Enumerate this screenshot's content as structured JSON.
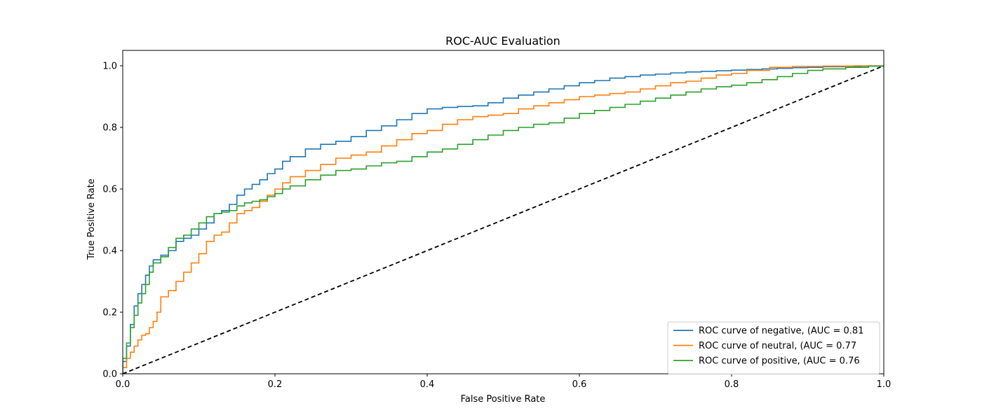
{
  "chart_data": {
    "type": "line",
    "title": "ROC-AUC Evaluation",
    "xlabel": "False Positive Rate",
    "ylabel": "True Positive Rate",
    "xlim": [
      0.0,
      1.0
    ],
    "ylim": [
      0.0,
      1.05
    ],
    "xticks": [
      "0.0",
      "0.2",
      "0.4",
      "0.6",
      "0.8",
      "1.0"
    ],
    "yticks": [
      "0.0",
      "0.2",
      "0.4",
      "0.6",
      "0.8",
      "1.0"
    ],
    "grid": false,
    "legend_position": "lower-right",
    "series": [
      {
        "name": "ROC curve of negative, (AUC = 0.81",
        "color": "#1f77b4",
        "x": [
          0.0,
          0.0,
          0.005,
          0.01,
          0.015,
          0.02,
          0.025,
          0.03,
          0.035,
          0.04,
          0.05,
          0.06,
          0.07,
          0.08,
          0.09,
          0.1,
          0.11,
          0.12,
          0.13,
          0.14,
          0.15,
          0.16,
          0.17,
          0.18,
          0.19,
          0.2,
          0.21,
          0.22,
          0.24,
          0.26,
          0.28,
          0.3,
          0.32,
          0.34,
          0.36,
          0.38,
          0.4,
          0.42,
          0.44,
          0.46,
          0.48,
          0.5,
          0.52,
          0.54,
          0.56,
          0.58,
          0.6,
          0.62,
          0.64,
          0.66,
          0.68,
          0.7,
          0.72,
          0.74,
          0.76,
          0.78,
          0.8,
          0.82,
          0.84,
          0.86,
          0.88,
          0.9,
          0.92,
          0.95,
          0.97,
          1.0
        ],
        "y": [
          0.0,
          0.04,
          0.09,
          0.16,
          0.22,
          0.26,
          0.29,
          0.32,
          0.35,
          0.37,
          0.385,
          0.4,
          0.43,
          0.44,
          0.45,
          0.47,
          0.49,
          0.52,
          0.53,
          0.55,
          0.58,
          0.6,
          0.615,
          0.63,
          0.65,
          0.665,
          0.69,
          0.705,
          0.73,
          0.745,
          0.755,
          0.77,
          0.79,
          0.805,
          0.825,
          0.845,
          0.86,
          0.865,
          0.868,
          0.87,
          0.88,
          0.895,
          0.905,
          0.915,
          0.925,
          0.935,
          0.945,
          0.952,
          0.96,
          0.965,
          0.97,
          0.973,
          0.977,
          0.98,
          0.982,
          0.984,
          0.986,
          0.988,
          0.99,
          0.992,
          0.994,
          0.995,
          0.997,
          0.998,
          0.999,
          1.0
        ]
      },
      {
        "name": "ROC curve of neutral, (AUC = 0.77",
        "color": "#ff7f0e",
        "x": [
          0.0,
          0.0,
          0.005,
          0.01,
          0.015,
          0.02,
          0.025,
          0.03,
          0.035,
          0.04,
          0.045,
          0.05,
          0.06,
          0.07,
          0.08,
          0.09,
          0.1,
          0.11,
          0.12,
          0.13,
          0.14,
          0.15,
          0.16,
          0.17,
          0.18,
          0.19,
          0.2,
          0.21,
          0.22,
          0.24,
          0.26,
          0.28,
          0.3,
          0.32,
          0.34,
          0.36,
          0.38,
          0.4,
          0.42,
          0.44,
          0.46,
          0.48,
          0.5,
          0.52,
          0.54,
          0.56,
          0.58,
          0.6,
          0.62,
          0.64,
          0.66,
          0.68,
          0.7,
          0.72,
          0.74,
          0.76,
          0.78,
          0.8,
          0.82,
          0.85,
          0.88,
          0.92,
          0.96,
          1.0
        ],
        "y": [
          0.0,
          0.02,
          0.05,
          0.07,
          0.09,
          0.11,
          0.125,
          0.13,
          0.15,
          0.17,
          0.2,
          0.25,
          0.27,
          0.3,
          0.33,
          0.36,
          0.39,
          0.43,
          0.45,
          0.46,
          0.49,
          0.52,
          0.53,
          0.54,
          0.56,
          0.58,
          0.6,
          0.62,
          0.64,
          0.66,
          0.68,
          0.7,
          0.71,
          0.72,
          0.74,
          0.76,
          0.78,
          0.79,
          0.81,
          0.825,
          0.835,
          0.84,
          0.845,
          0.86,
          0.87,
          0.88,
          0.89,
          0.9,
          0.905,
          0.91,
          0.915,
          0.925,
          0.935,
          0.945,
          0.95,
          0.96,
          0.97,
          0.975,
          0.985,
          0.995,
          0.998,
          0.999,
          1.0,
          1.0
        ]
      },
      {
        "name": "ROC curve of positive, (AUC = 0.76",
        "color": "#2ca02c",
        "x": [
          0.0,
          0.0,
          0.005,
          0.01,
          0.015,
          0.02,
          0.025,
          0.03,
          0.035,
          0.04,
          0.05,
          0.06,
          0.07,
          0.08,
          0.09,
          0.1,
          0.11,
          0.12,
          0.13,
          0.14,
          0.15,
          0.16,
          0.17,
          0.18,
          0.19,
          0.2,
          0.21,
          0.22,
          0.24,
          0.26,
          0.28,
          0.3,
          0.32,
          0.34,
          0.36,
          0.38,
          0.4,
          0.42,
          0.44,
          0.46,
          0.48,
          0.5,
          0.52,
          0.54,
          0.56,
          0.58,
          0.6,
          0.62,
          0.64,
          0.66,
          0.68,
          0.7,
          0.72,
          0.74,
          0.76,
          0.78,
          0.8,
          0.82,
          0.84,
          0.86,
          0.88,
          0.9,
          0.92,
          0.95,
          0.98,
          1.0
        ],
        "y": [
          0.0,
          0.05,
          0.1,
          0.15,
          0.19,
          0.23,
          0.26,
          0.29,
          0.33,
          0.36,
          0.38,
          0.41,
          0.44,
          0.45,
          0.47,
          0.49,
          0.51,
          0.52,
          0.525,
          0.53,
          0.545,
          0.555,
          0.56,
          0.565,
          0.575,
          0.585,
          0.6,
          0.61,
          0.63,
          0.645,
          0.66,
          0.665,
          0.675,
          0.685,
          0.69,
          0.705,
          0.72,
          0.73,
          0.745,
          0.76,
          0.775,
          0.79,
          0.8,
          0.81,
          0.815,
          0.83,
          0.845,
          0.855,
          0.865,
          0.875,
          0.885,
          0.895,
          0.905,
          0.915,
          0.925,
          0.932,
          0.937,
          0.945,
          0.955,
          0.965,
          0.975,
          0.985,
          0.99,
          0.995,
          0.999,
          1.0
        ]
      },
      {
        "name": "",
        "color": "#000000",
        "dashed": true,
        "x": [
          0.0,
          1.0
        ],
        "y": [
          0.0,
          1.0
        ]
      }
    ]
  }
}
